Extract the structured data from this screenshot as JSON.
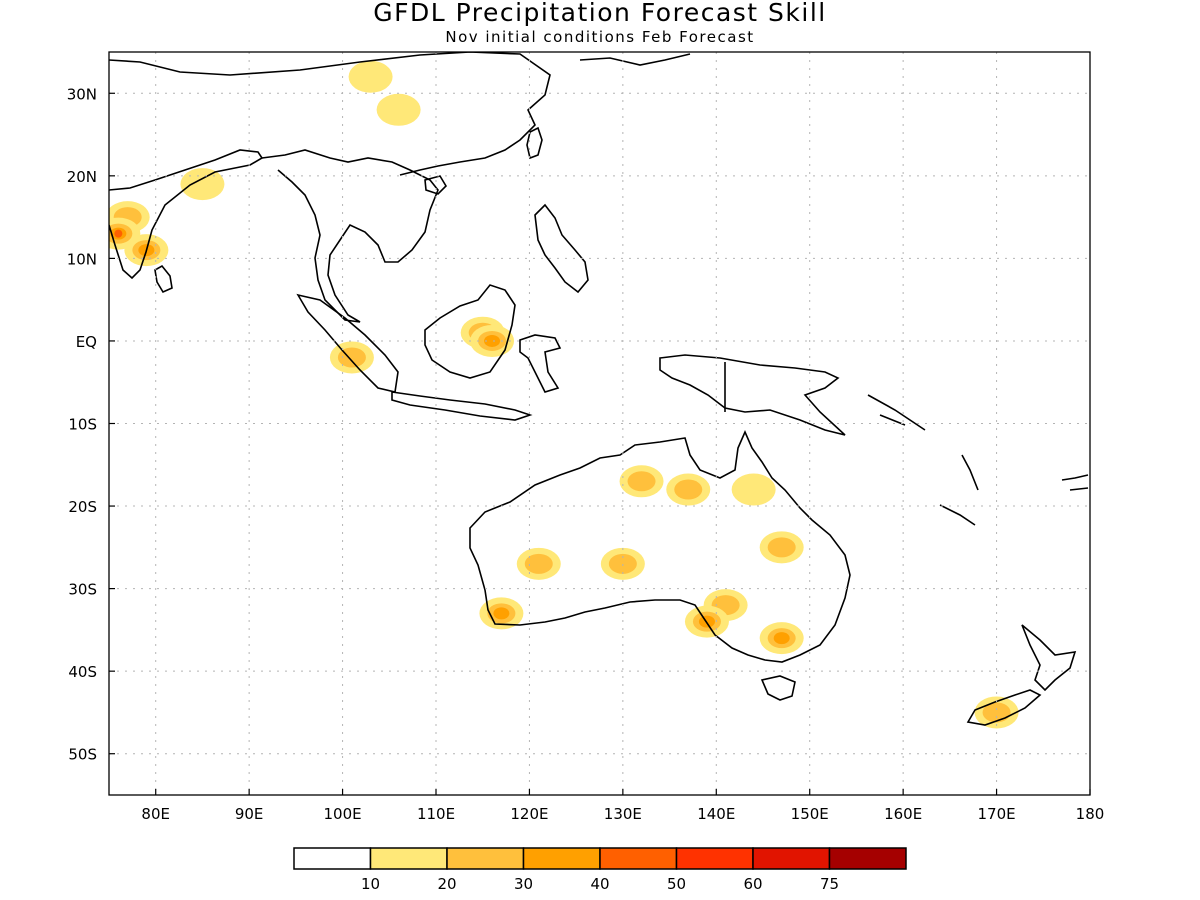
{
  "title": "GFDL Precipitation Forecast Skill",
  "subtitle": "Nov initial conditions  Feb Forecast",
  "map": {
    "lon_range": [
      75,
      180
    ],
    "lat_range": [
      -55,
      35
    ],
    "lon_ticks": [
      {
        "v": 80,
        "label": "80E"
      },
      {
        "v": 90,
        "label": "90E"
      },
      {
        "v": 100,
        "label": "100E"
      },
      {
        "v": 110,
        "label": "110E"
      },
      {
        "v": 120,
        "label": "120E"
      },
      {
        "v": 130,
        "label": "130E"
      },
      {
        "v": 140,
        "label": "140E"
      },
      {
        "v": 150,
        "label": "150E"
      },
      {
        "v": 160,
        "label": "160E"
      },
      {
        "v": 170,
        "label": "170E"
      },
      {
        "v": 180,
        "label": "180"
      }
    ],
    "lat_ticks": [
      {
        "v": 30,
        "label": "30N"
      },
      {
        "v": 20,
        "label": "20N"
      },
      {
        "v": 10,
        "label": "10N"
      },
      {
        "v": 0,
        "label": "EQ"
      },
      {
        "v": -10,
        "label": "10S"
      },
      {
        "v": -20,
        "label": "20S"
      },
      {
        "v": -30,
        "label": "30S"
      },
      {
        "v": -40,
        "label": "40S"
      },
      {
        "v": -50,
        "label": "50S"
      }
    ],
    "grid": true
  },
  "colorbar": {
    "colors": [
      "#ffffff",
      "#ffe878",
      "#ffc03c",
      "#ffa000",
      "#ff6000",
      "#ff3200",
      "#e11400",
      "#a50000"
    ],
    "labels": [
      "10",
      "20",
      "30",
      "40",
      "50",
      "60",
      "75"
    ]
  },
  "skill_regions": [
    {
      "lon": 77,
      "lat": 15,
      "level": 2
    },
    {
      "lon": 79,
      "lat": 11,
      "level": 3
    },
    {
      "lon": 76,
      "lat": 13,
      "level": 4
    },
    {
      "lon": 85,
      "lat": 19,
      "level": 1
    },
    {
      "lon": 103,
      "lat": 32,
      "level": 1
    },
    {
      "lon": 106,
      "lat": 28,
      "level": 1
    },
    {
      "lon": 101,
      "lat": -2,
      "level": 2
    },
    {
      "lon": 115,
      "lat": 1,
      "level": 2
    },
    {
      "lon": 116,
      "lat": 0,
      "level": 3
    },
    {
      "lon": 132,
      "lat": -17,
      "level": 2
    },
    {
      "lon": 137,
      "lat": -18,
      "level": 2
    },
    {
      "lon": 144,
      "lat": -18,
      "level": 1
    },
    {
      "lon": 121,
      "lat": -27,
      "level": 2
    },
    {
      "lon": 130,
      "lat": -27,
      "level": 2
    },
    {
      "lon": 141,
      "lat": -32,
      "level": 2
    },
    {
      "lon": 147,
      "lat": -25,
      "level": 2
    },
    {
      "lon": 139,
      "lat": -34,
      "level": 3
    },
    {
      "lon": 147,
      "lat": -36,
      "level": 3
    },
    {
      "lon": 117,
      "lat": -33,
      "level": 3
    },
    {
      "lon": 170,
      "lat": -45,
      "level": 2
    }
  ]
}
